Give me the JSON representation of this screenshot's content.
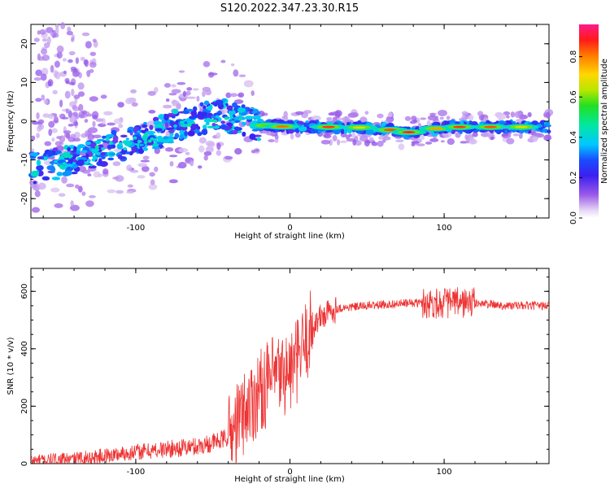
{
  "title": "S120.2022.347.23.30.R15",
  "chart_data": [
    {
      "type": "heatmap",
      "title": "S120.2022.347.23.30.R15",
      "xlabel": "Height of straight line (km)",
      "ylabel": "Frequency (Hz)",
      "xlim": [
        -168,
        168
      ],
      "ylim": [
        -25,
        25
      ],
      "x_ticks": [
        -100,
        0,
        100
      ],
      "y_ticks": [
        -20,
        -10,
        0,
        10,
        20
      ],
      "colorbar": {
        "label": "Normalized spectral amplitude",
        "range": [
          0,
          0.96
        ],
        "ticks": [
          0.0,
          0.2,
          0.4,
          0.6,
          0.8
        ],
        "colormap": "purple-blue-cyan-green-yellow-red-magenta"
      },
      "ridge": {
        "description_points_x": [
          -165,
          -140,
          -120,
          -100,
          -80,
          -60,
          -45,
          -30,
          -20,
          0,
          20,
          40,
          60,
          80,
          100,
          120,
          140,
          165
        ],
        "frequency_hz": [
          -12,
          -10,
          -7,
          -5,
          -2,
          0,
          2,
          0,
          -1,
          -1.5,
          -1.5,
          -1.5,
          -2,
          -3,
          -1.5,
          -1.5,
          -1.5,
          -1.5
        ]
      }
    },
    {
      "type": "line",
      "xlabel": "Height of straight line (km)",
      "ylabel": "SNR (10 * v/v)",
      "xlim": [
        -168,
        168
      ],
      "ylim": [
        0,
        680
      ],
      "x_ticks": [
        -100,
        0,
        100
      ],
      "y_ticks": [
        0,
        200,
        400,
        600
      ],
      "color": "#ee3333",
      "profile": {
        "x": [
          -168,
          -140,
          -100,
          -80,
          -60,
          -45,
          -38,
          -30,
          -20,
          -10,
          0,
          5,
          10,
          15,
          20,
          30,
          50,
          80,
          90,
          100,
          110,
          120,
          140,
          168
        ],
        "y": [
          10,
          15,
          40,
          50,
          60,
          80,
          100,
          180,
          250,
          300,
          320,
          360,
          420,
          480,
          510,
          540,
          550,
          560,
          560,
          560,
          560,
          560,
          550,
          550
        ]
      }
    }
  ]
}
